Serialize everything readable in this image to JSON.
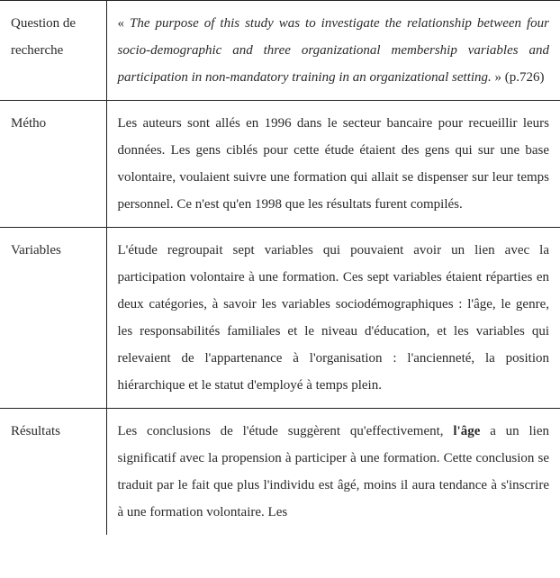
{
  "rows": {
    "question": {
      "label": "Question de recherche",
      "open_quote": "« ",
      "quote": "The purpose of this study was to investigate the relationship between four socio-demographic and three organizational membership variables and participation in non-mandatory training in an organizational setting.",
      "close_ref": " » (p.726)"
    },
    "metho": {
      "label": "Métho",
      "text": "Les auteurs sont allés en 1996 dans le secteur bancaire pour recueillir leurs données. Les gens ciblés pour cette étude étaient des gens qui sur une base volontaire, voulaient suivre une formation qui allait se dispenser sur leur temps personnel. Ce n'est qu'en 1998 que les résultats furent compilés."
    },
    "variables": {
      "label": "Variables",
      "text": "L'étude regroupait sept variables qui pouvaient avoir un lien avec la participation volontaire à une formation. Ces sept variables étaient réparties en deux catégories, à savoir les variables sociodémographiques : l'âge, le genre, les responsabilités familiales et le niveau d'éducation, et les variables qui relevaient de l'appartenance à l'organisation : l'ancienneté, la position hiérarchique et le statut d'employé à temps plein."
    },
    "resultats": {
      "label": "Résultats",
      "pre": "Les conclusions de l'étude suggèrent qu'effectivement, ",
      "bold": "l'âge",
      "post": " a un lien significatif avec la propension à participer à une formation. Cette conclusion se traduit par le fait que plus l'individu est âgé, moins il aura tendance à s'inscrire à une formation volontaire. Les"
    }
  },
  "colors": {
    "border": "#222222",
    "text": "#2a2a2a",
    "background": "#ffffff"
  },
  "font": {
    "family": "Times New Roman",
    "size_pt": 11,
    "line_height": 2.0
  }
}
